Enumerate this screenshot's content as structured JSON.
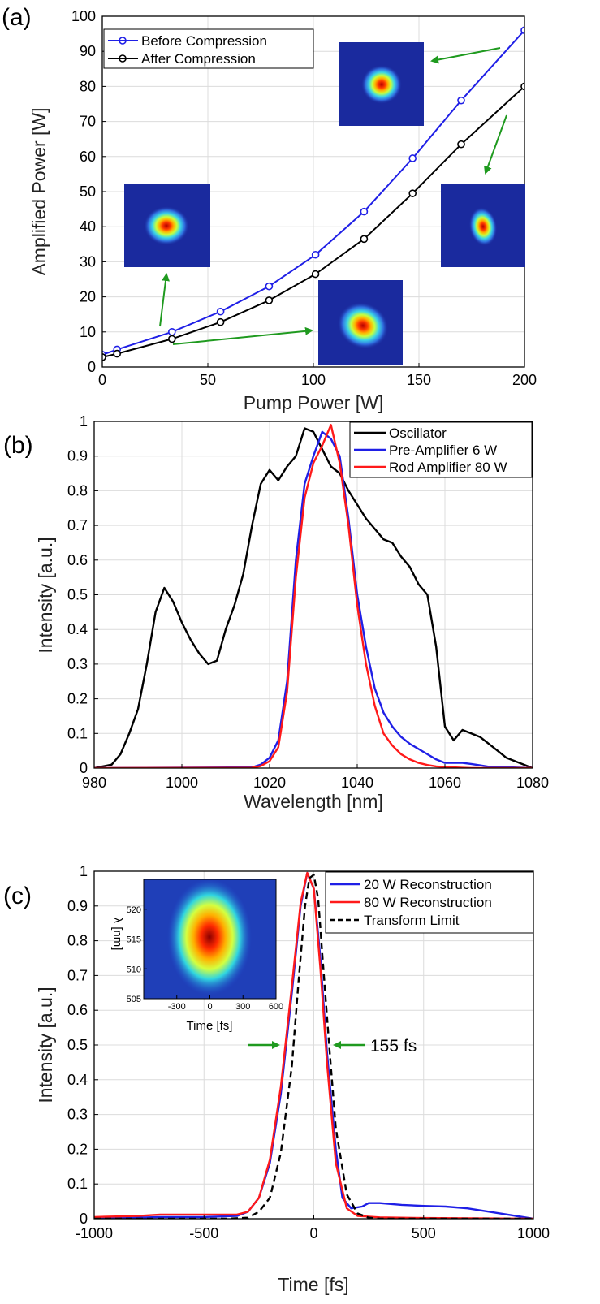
{
  "colors": {
    "blue": "#1f1fe6",
    "black": "#000000",
    "red": "#ff1a1a",
    "arrow_green": "#1f9a1f",
    "grid": "#dcdcdc",
    "beam_background": "#1a2a9e"
  },
  "chart_data": [
    {
      "panel": "(a)",
      "type": "line",
      "xlabel": "Pump Power [W]",
      "ylabel": "Amplified Power [W]",
      "xlim": [
        0,
        200
      ],
      "ylim": [
        0,
        100
      ],
      "xticks": [
        "0",
        "50",
        "100",
        "150",
        "200"
      ],
      "yticks": [
        "0",
        "10",
        "20",
        "30",
        "40",
        "50",
        "60",
        "70",
        "80",
        "90",
        "100"
      ],
      "grid": true,
      "legend_position": "top-left",
      "series": [
        {
          "name": "Before Compression",
          "color": "#1f1fe6",
          "marker": "circle",
          "x": [
            0,
            7,
            33,
            56,
            79,
            101,
            124,
            147,
            170,
            200
          ],
          "y": [
            3.5,
            5,
            10,
            15.8,
            23,
            32,
            44.3,
            59.5,
            76,
            96
          ]
        },
        {
          "name": "After Compression",
          "color": "#000000",
          "marker": "circle",
          "x": [
            0,
            7,
            33,
            56,
            79,
            101,
            124,
            147,
            170,
            200
          ],
          "y": [
            2.8,
            3.8,
            8,
            12.8,
            19,
            26.5,
            36.5,
            49.5,
            63.5,
            80
          ]
        }
      ],
      "beam_insets": [
        {
          "name": "beam-profile-low-power-before",
          "shape": "round",
          "at_x": 30,
          "at_y": 10
        },
        {
          "name": "beam-profile-low-power-after",
          "shape": "irregular",
          "at_x": 33,
          "at_y": 8
        },
        {
          "name": "beam-profile-full-power-before",
          "shape": "round",
          "at_x": 200,
          "at_y": 96
        },
        {
          "name": "beam-profile-full-power-after",
          "shape": "elongated",
          "at_x": 200,
          "at_y": 80
        }
      ]
    },
    {
      "panel": "(b)",
      "type": "line",
      "xlabel": "Wavelength [nm]",
      "ylabel": "Intensity [a.u.]",
      "xlim": [
        980,
        1080
      ],
      "ylim": [
        0,
        1
      ],
      "xticks": [
        "980",
        "1000",
        "1020",
        "1040",
        "1060",
        "1080"
      ],
      "yticks": [
        "0",
        "0.1",
        "0.2",
        "0.3",
        "0.4",
        "0.5",
        "0.6",
        "0.7",
        "0.8",
        "0.9",
        "1"
      ],
      "grid": true,
      "legend_position": "top-right",
      "series": [
        {
          "name": "Oscillator",
          "color": "#000000",
          "x": [
            980,
            984,
            986,
            988,
            990,
            992,
            994,
            996,
            998,
            1000,
            1002,
            1004,
            1006,
            1008,
            1010,
            1012,
            1014,
            1016,
            1018,
            1020,
            1022,
            1024,
            1026,
            1028,
            1030,
            1032,
            1034,
            1036,
            1038,
            1040,
            1042,
            1044,
            1046,
            1048,
            1050,
            1052,
            1054,
            1056,
            1058,
            1060,
            1062,
            1064,
            1066,
            1068,
            1070,
            1072,
            1074,
            1076,
            1078,
            1080
          ],
          "y": [
            0.0,
            0.01,
            0.04,
            0.1,
            0.17,
            0.3,
            0.45,
            0.52,
            0.48,
            0.42,
            0.37,
            0.33,
            0.3,
            0.31,
            0.4,
            0.47,
            0.56,
            0.7,
            0.82,
            0.86,
            0.83,
            0.87,
            0.9,
            0.98,
            0.97,
            0.92,
            0.87,
            0.85,
            0.8,
            0.76,
            0.72,
            0.69,
            0.66,
            0.65,
            0.61,
            0.58,
            0.53,
            0.5,
            0.35,
            0.12,
            0.08,
            0.11,
            0.1,
            0.09,
            0.07,
            0.05,
            0.03,
            0.02,
            0.01,
            0.0
          ]
        },
        {
          "name": "Pre-Amplifier 6 W",
          "color": "#1f1fe6",
          "x": [
            980,
            1016,
            1018,
            1020,
            1022,
            1024,
            1026,
            1028,
            1030,
            1032,
            1034,
            1036,
            1038,
            1040,
            1042,
            1044,
            1046,
            1048,
            1050,
            1052,
            1054,
            1056,
            1058,
            1060,
            1062,
            1064,
            1066,
            1068,
            1070,
            1080
          ],
          "y": [
            0.0,
            0.002,
            0.01,
            0.03,
            0.08,
            0.25,
            0.6,
            0.82,
            0.9,
            0.97,
            0.95,
            0.9,
            0.72,
            0.5,
            0.35,
            0.23,
            0.16,
            0.12,
            0.09,
            0.07,
            0.055,
            0.04,
            0.025,
            0.015,
            0.015,
            0.015,
            0.012,
            0.008,
            0.004,
            0.0
          ]
        },
        {
          "name": "Rod Amplifier 80 W",
          "color": "#ff1a1a",
          "x": [
            980,
            1016,
            1018,
            1020,
            1022,
            1024,
            1026,
            1028,
            1030,
            1032,
            1034,
            1036,
            1038,
            1040,
            1042,
            1044,
            1046,
            1048,
            1050,
            1052,
            1054,
            1056,
            1058,
            1060,
            1062,
            1064,
            1066,
            1068,
            1070,
            1080
          ],
          "y": [
            0.0,
            0.001,
            0.006,
            0.02,
            0.06,
            0.22,
            0.55,
            0.78,
            0.88,
            0.93,
            0.99,
            0.88,
            0.7,
            0.47,
            0.3,
            0.18,
            0.1,
            0.065,
            0.04,
            0.025,
            0.015,
            0.009,
            0.005,
            0.003,
            0.002,
            0.001,
            0.0,
            0.0,
            0.0,
            0.0
          ]
        }
      ]
    },
    {
      "panel": "(c)",
      "type": "line",
      "xlabel": "Time [fs]",
      "ylabel": "Intensity [a.u.]",
      "xlim": [
        -1000,
        1000
      ],
      "ylim": [
        0,
        1
      ],
      "xticks": [
        "-1000",
        "-500",
        "0",
        "500",
        "1000"
      ],
      "yticks": [
        "0",
        "0.1",
        "0.2",
        "0.3",
        "0.4",
        "0.5",
        "0.6",
        "0.7",
        "0.8",
        "0.9",
        "1"
      ],
      "grid": true,
      "legend_position": "top-right",
      "annotation": {
        "text": "155 fs",
        "x_left": -110,
        "x_right": 60,
        "y": 0.5
      },
      "series": [
        {
          "name": "20 W Reconstruction",
          "color": "#1f1fe6",
          "dash": "solid",
          "x": [
            -1000,
            -700,
            -500,
            -350,
            -300,
            -250,
            -200,
            -150,
            -100,
            -60,
            -30,
            0,
            30,
            60,
            100,
            130,
            170,
            220,
            250,
            300,
            400,
            500,
            600,
            700,
            800,
            900,
            1000
          ],
          "y": [
            0.0,
            0.005,
            0.005,
            0.008,
            0.02,
            0.06,
            0.16,
            0.36,
            0.65,
            0.9,
            0.995,
            0.95,
            0.75,
            0.48,
            0.2,
            0.06,
            0.03,
            0.035,
            0.045,
            0.045,
            0.04,
            0.037,
            0.035,
            0.03,
            0.02,
            0.01,
            0.0
          ]
        },
        {
          "name": "80 W Reconstruction",
          "color": "#ff1a1a",
          "dash": "solid",
          "x": [
            -1000,
            -800,
            -700,
            -500,
            -350,
            -300,
            -250,
            -200,
            -150,
            -100,
            -60,
            -30,
            0,
            30,
            60,
            100,
            150,
            200,
            300,
            500,
            800,
            1000
          ],
          "y": [
            0.005,
            0.008,
            0.012,
            0.012,
            0.012,
            0.02,
            0.06,
            0.17,
            0.38,
            0.67,
            0.91,
            0.995,
            0.95,
            0.72,
            0.45,
            0.16,
            0.03,
            0.008,
            0.004,
            0.002,
            0.001,
            0.0
          ]
        },
        {
          "name": "Transform Limit",
          "color": "#000000",
          "dash": "dashed",
          "x": [
            -1000,
            -400,
            -300,
            -250,
            -200,
            -150,
            -100,
            -70,
            -40,
            -20,
            0,
            20,
            40,
            70,
            100,
            150,
            200,
            250,
            300,
            400,
            1000
          ],
          "y": [
            0.0,
            0.0,
            0.003,
            0.02,
            0.06,
            0.19,
            0.44,
            0.68,
            0.9,
            0.98,
            0.99,
            0.92,
            0.75,
            0.5,
            0.26,
            0.07,
            0.015,
            0.003,
            0.0,
            0.0,
            0.0
          ]
        }
      ],
      "inset": {
        "type": "heatmap",
        "xlabel": "Time [fs]",
        "ylabel": "λ [nm]",
        "xlim": [
          -600,
          600
        ],
        "ylim": [
          505,
          525
        ],
        "xticks": [
          "-300",
          "0",
          "300",
          "600"
        ],
        "yticks": [
          "505",
          "510",
          "515",
          "520"
        ],
        "peak": {
          "t": 0,
          "lambda": 515
        }
      }
    }
  ]
}
